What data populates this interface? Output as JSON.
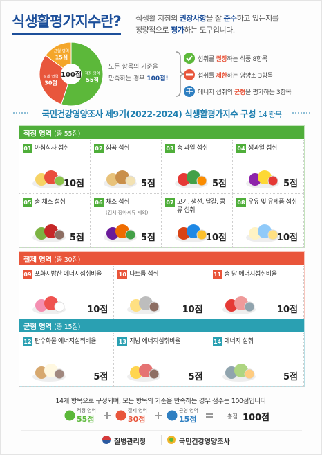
{
  "header": {
    "title": "식생활평가지수란?",
    "description": [
      "식생활 지침의 ",
      "권장사항",
      "을 잘 ",
      "준수",
      "하고 있는지를",
      "정량적으로 ",
      "평가",
      "하는 도구입니다."
    ]
  },
  "pie": {
    "center": "100점",
    "segments": [
      {
        "name": "적정 영역",
        "value": 55,
        "label": "55점",
        "color": "#5cb83a"
      },
      {
        "name": "절제 영역",
        "value": 30,
        "label": "30점",
        "color": "#e8563c"
      },
      {
        "name": "균형 영역",
        "value": 15,
        "label": "15점",
        "color": "#f4a62a"
      }
    ]
  },
  "note": [
    "모든 항목의 기준을",
    "만족하는 경우 ",
    "100점!"
  ],
  "legend": [
    [
      "섭취를 ",
      "권장",
      "하는 식품 ",
      "8항목"
    ],
    [
      "섭취를 ",
      "제한",
      "하는 영양소 ",
      "3항목"
    ],
    [
      "에너지 섭취의 ",
      "균형",
      "을 평가하는 ",
      "3항목"
    ]
  ],
  "section": {
    "title": "국민건강영양조사 제9기(2022-2024) 식생활평가지수 구성",
    "count": "14 항목"
  },
  "groups": [
    {
      "title": "적정 영역",
      "total": "(총 55점)",
      "items": [
        {
          "no": "01",
          "name": "아침식사 섭취",
          "score": "10점"
        },
        {
          "no": "02",
          "name": "잡곡 섭취",
          "score": "5점"
        },
        {
          "no": "03",
          "name": "총 과일 섭취",
          "score": "5점"
        },
        {
          "no": "04",
          "name": "생과일 섭취",
          "score": "5점"
        },
        {
          "no": "05",
          "name": "총 채소 섭취",
          "score": "5점"
        },
        {
          "no": "06",
          "name": "채소 섭취",
          "sub": "(김치·장아찌류 제외)",
          "score": "5점"
        },
        {
          "no": "07",
          "name": "고기, 생선, 달걀, 콩류 섭취",
          "score": "10점"
        },
        {
          "no": "08",
          "name": "우유 및 유제품 섭취",
          "score": "10점"
        }
      ]
    },
    {
      "title": "절제 영역",
      "total": "(총 30점)",
      "items": [
        {
          "no": "09",
          "name": "포화지방산 에너지섭취비율",
          "score": "10점"
        },
        {
          "no": "10",
          "name": "나트륨 섭취",
          "score": "10점"
        },
        {
          "no": "11",
          "name": "총 당 에너지섭취비율",
          "score": "10점"
        }
      ]
    },
    {
      "title": "균형 영역",
      "total": "(총 15점)",
      "items": [
        {
          "no": "12",
          "name": "탄수화물 에너지섭취비율",
          "score": "5점"
        },
        {
          "no": "13",
          "name": "지방 에너지섭취비율",
          "score": "5점"
        },
        {
          "no": "14",
          "name": "에너지 섭취",
          "score": "5점"
        }
      ]
    }
  ],
  "summary": {
    "text": "14개 항목으로 구성되며, 모든 항목의 기준을 만족하는 경우 점수는 100점입니다.",
    "parts": [
      {
        "label": "적정 영역",
        "score": "55점"
      },
      {
        "label": "절제 영역",
        "score": "30점"
      },
      {
        "label": "균형 영역",
        "score": "15점"
      }
    ],
    "total_label": "총점",
    "total": "100점"
  },
  "footer": [
    "질병관리청",
    "국민건강영양조사"
  ]
}
